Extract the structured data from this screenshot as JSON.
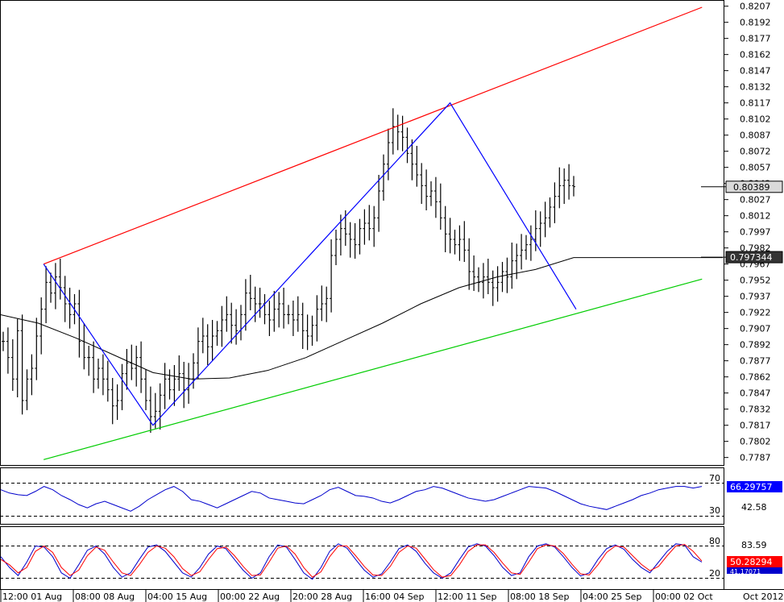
{
  "chart_data": [
    {
      "type": "ohlc",
      "series": [
        {
          "name": "",
          "values": [
            0.7895,
            0.788,
            0.786,
            0.7905,
            0.784,
            0.786,
            0.787,
            0.79,
            0.7925,
            0.795,
            0.794,
            0.7955,
            0.7945,
            0.793,
            0.792,
            0.793,
            0.7895,
            0.788,
            0.788,
            0.786,
            0.787,
            0.786,
            0.785,
            0.7835,
            0.784,
            0.7865,
            0.7875,
            0.787,
            0.788,
            0.786,
            0.784,
            0.7825,
            0.783,
            0.7845,
            0.786,
            0.785,
            0.786,
            0.7865,
            0.785,
            0.786,
            0.7875,
            0.7895,
            0.79,
            0.789,
            0.79,
            0.7905,
            0.7915,
            0.792,
            0.791,
            0.7905,
            0.792,
            0.794,
            0.7935,
            0.793,
            0.793,
            0.792,
            0.7915,
            0.7925,
            0.793,
            0.792,
            0.792,
            0.7915,
            0.792,
            0.7905,
            0.79,
            0.791,
            0.7925,
            0.793,
            0.7935,
            0.7975,
            0.799,
            0.8,
            0.7995,
            0.799,
            0.7985,
            0.8,
            0.8005,
            0.8,
            0.801,
            0.8035,
            0.806,
            0.808,
            0.8095,
            0.809,
            0.8085,
            0.807,
            0.806,
            0.805,
            0.804,
            0.803,
            0.8035,
            0.8025,
            0.801,
            0.7995,
            0.799,
            0.7985,
            0.799,
            0.798,
            0.796,
            0.7955,
            0.795,
            0.7955,
            0.795,
            0.7945,
            0.795,
            0.796,
            0.7955,
            0.797,
            0.7975,
            0.798,
            0.7985,
            0.799,
            0.8,
            0.8005,
            0.801,
            0.802,
            0.803,
            0.804,
            0.8045,
            0.804,
            0.8039
          ]
        },
        {
          "name": "",
          "values": [
            0.792,
            0.7912,
            0.7898,
            0.7882,
            0.7866,
            0.786,
            0.7861,
            0.7868,
            0.788,
            0.7896,
            0.7912,
            0.793,
            0.7945,
            0.7955,
            0.7962,
            0.7973
          ]
        }
      ],
      "ylim": [
        0.778,
        0.8212
      ],
      "y_ticks": [
        "0.8207",
        "0.8192",
        "0.8177",
        "0.8162",
        "0.8147",
        "0.8132",
        "0.8117",
        "0.8102",
        "0.8087",
        "0.8072",
        "0.8057",
        "0.8042",
        "0.8027",
        "0.8012",
        "0.7997",
        "0.7982",
        "0.7967",
        "0.7952",
        "0.7937",
        "0.7922",
        "0.7907",
        "0.7892",
        "0.7877",
        "0.7862",
        "0.7847",
        "0.7832",
        "0.7817",
        "0.7802",
        "0.7787"
      ],
      "price_label": "0.80389",
      "ma_label": "0.797344",
      "trendlines": [
        {
          "name": "upper-channel",
          "color": "#ff0000",
          "points": [
            [
              8.5,
              0.7967
            ],
            [
              147,
              0.8206
            ]
          ]
        },
        {
          "name": "lower-channel",
          "color": "#00cc00",
          "points": [
            [
              8.5,
              0.7785
            ],
            [
              147,
              0.7953
            ]
          ]
        },
        {
          "name": "zigzag",
          "color": "#0000ff",
          "points": [
            [
              8.5,
              0.7967
            ],
            [
              31.5,
              0.7817
            ],
            [
              94,
              0.8117
            ],
            [
              120.5,
              0.7925
            ]
          ]
        }
      ],
      "colors": {
        "bars": "#000000",
        "ma": "#000000"
      }
    },
    {
      "type": "line",
      "series": [
        {
          "name": "",
          "values": [
            62,
            58,
            56,
            55,
            60,
            66,
            62,
            55,
            50,
            44,
            40,
            45,
            48,
            44,
            40,
            36,
            42,
            50,
            56,
            62,
            66,
            60,
            50,
            48,
            44,
            40,
            45,
            50,
            55,
            60,
            58,
            52,
            50,
            48,
            46,
            45,
            50,
            55,
            62,
            65,
            60,
            55,
            54,
            52,
            48,
            46,
            50,
            55,
            60,
            62,
            66,
            64,
            60,
            56,
            52,
            50,
            48,
            50,
            54,
            58,
            62,
            66,
            65,
            64,
            60,
            55,
            50,
            45,
            42,
            40,
            38,
            42,
            46,
            50,
            55,
            58,
            62,
            64,
            66,
            66,
            64,
            66
          ]
        }
      ],
      "y_ticks": [
        "70",
        "30"
      ],
      "value_labels": [
        "66.29757",
        "42.58"
      ],
      "colors": {
        "line": "#0000cc",
        "label_bg": "#0000ff"
      }
    },
    {
      "type": "line",
      "series": [
        {
          "name": "",
          "values": [
            60,
            40,
            25,
            50,
            80,
            78,
            60,
            30,
            20,
            45,
            72,
            80,
            65,
            40,
            22,
            30,
            55,
            78,
            82,
            70,
            50,
            30,
            22,
            40,
            65,
            80,
            75,
            55,
            35,
            20,
            30,
            60,
            82,
            78,
            55,
            30,
            18,
            40,
            70,
            84,
            76,
            55,
            35,
            22,
            28,
            50,
            75,
            82,
            70,
            48,
            30,
            20,
            30,
            55,
            78,
            84,
            80,
            62,
            40,
            25,
            30,
            60,
            80,
            84,
            78,
            60,
            40,
            24,
            30,
            55,
            75,
            82,
            74,
            55,
            40,
            30,
            50,
            70,
            84,
            82,
            60,
            50
          ]
        },
        {
          "name": "",
          "values": [
            55,
            45,
            30,
            40,
            70,
            80,
            68,
            40,
            25,
            35,
            62,
            78,
            72,
            50,
            30,
            25,
            45,
            68,
            80,
            76,
            60,
            38,
            25,
            32,
            55,
            75,
            78,
            62,
            42,
            25,
            26,
            50,
            76,
            80,
            65,
            40,
            22,
            32,
            60,
            80,
            80,
            62,
            42,
            26,
            25,
            42,
            68,
            80,
            76,
            56,
            36,
            22,
            25,
            45,
            70,
            82,
            82,
            68,
            48,
            30,
            27,
            50,
            75,
            82,
            80,
            66,
            46,
            28,
            26,
            45,
            68,
            80,
            78,
            62,
            46,
            34,
            42,
            62,
            80,
            83,
            70,
            52
          ]
        }
      ],
      "y_ticks": [
        "80",
        "20"
      ],
      "value_labels": [
        "83.59",
        "50.28294",
        "41.17071"
      ],
      "colors": {
        "line_a": "#0000cc",
        "line_b": "#ff0000",
        "label_bg": "#ff0000"
      }
    }
  ],
  "x_axis": {
    "labels": [
      "12:00 01 Aug",
      "08:00 08 Aug",
      "04:00 15 Aug",
      "00:00 22 Aug",
      "20:00 28 Aug",
      "16:00 04 Sep",
      "12:00 11 Sep",
      "08:00 18 Sep",
      "04:00 25 Sep",
      "00:00 02 Oct"
    ],
    "corner_label": "Oct 2012"
  }
}
